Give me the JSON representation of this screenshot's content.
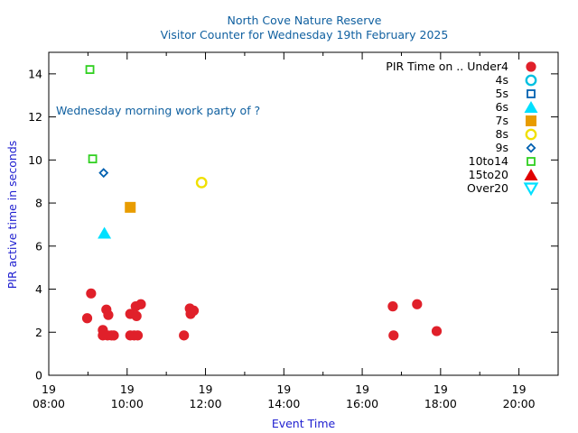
{
  "chart_data": {
    "type": "scatter",
    "title": "North Cove Nature Reserve",
    "subtitle": "Visitor Counter for Wednesday 19th February 2025",
    "xlabel": "Event Time",
    "ylabel": "PIR active time in seconds",
    "annotation": "Wednesday morning work party of ?",
    "legend_title": "PIR Time on ..",
    "legend_position": "top-right",
    "grid": false,
    "xlim": [
      8,
      21
    ],
    "ylim": [
      0,
      15
    ],
    "x_ticks": [
      {
        "value": 8,
        "day": "19",
        "time": "08:00"
      },
      {
        "value": 10,
        "day": "19",
        "time": "10:00"
      },
      {
        "value": 12,
        "day": "19",
        "time": "12:00"
      },
      {
        "value": 14,
        "day": "19",
        "time": "14:00"
      },
      {
        "value": 16,
        "day": "19",
        "time": "16:00"
      },
      {
        "value": 18,
        "day": "19",
        "time": "18:00"
      },
      {
        "value": 20,
        "day": "19",
        "time": "20:00"
      }
    ],
    "y_ticks": [
      "0",
      "2",
      "4",
      "6",
      "8",
      "10",
      "12",
      "14"
    ],
    "series": [
      {
        "name": "Under4",
        "color": "#e0202a",
        "marker": "circle-filled",
        "points": [
          {
            "x": 8.98,
            "y": 2.65
          },
          {
            "x": 9.08,
            "y": 3.8
          },
          {
            "x": 9.38,
            "y": 2.1
          },
          {
            "x": 9.38,
            "y": 1.85
          },
          {
            "x": 9.47,
            "y": 3.05
          },
          {
            "x": 9.52,
            "y": 2.8
          },
          {
            "x": 9.5,
            "y": 1.85
          },
          {
            "x": 9.6,
            "y": 1.85
          },
          {
            "x": 9.66,
            "y": 1.85
          },
          {
            "x": 10.08,
            "y": 2.85
          },
          {
            "x": 10.08,
            "y": 1.85
          },
          {
            "x": 10.18,
            "y": 1.85
          },
          {
            "x": 10.22,
            "y": 3.2
          },
          {
            "x": 10.24,
            "y": 2.75
          },
          {
            "x": 10.27,
            "y": 1.85
          },
          {
            "x": 10.35,
            "y": 3.3
          },
          {
            "x": 11.45,
            "y": 1.85
          },
          {
            "x": 11.6,
            "y": 3.1
          },
          {
            "x": 11.62,
            "y": 2.85
          },
          {
            "x": 11.7,
            "y": 3.0
          },
          {
            "x": 16.78,
            "y": 3.2
          },
          {
            "x": 16.8,
            "y": 1.85
          },
          {
            "x": 17.4,
            "y": 3.3
          },
          {
            "x": 17.9,
            "y": 2.05
          }
        ]
      },
      {
        "name": "4s",
        "color": "#00c0e0",
        "marker": "circle-open",
        "points": []
      },
      {
        "name": "5s",
        "color": "#0060b0",
        "marker": "square-open",
        "points": []
      },
      {
        "name": "6s",
        "color": "#00e0ff",
        "marker": "triangle-up-filled",
        "points": [
          {
            "x": 9.42,
            "y": 6.6
          }
        ]
      },
      {
        "name": "7s",
        "color": "#e89c00",
        "marker": "square-filled",
        "points": [
          {
            "x": 10.08,
            "y": 7.8
          }
        ]
      },
      {
        "name": "8s",
        "color": "#f0e000",
        "marker": "circle-open",
        "points": [
          {
            "x": 11.9,
            "y": 8.95
          }
        ]
      },
      {
        "name": "9s",
        "color": "#0060b0",
        "marker": "diamond-open",
        "points": [
          {
            "x": 9.4,
            "y": 9.4
          }
        ]
      },
      {
        "name": "10to14",
        "color": "#30d020",
        "marker": "square-open",
        "points": [
          {
            "x": 9.05,
            "y": 14.2
          },
          {
            "x": 9.12,
            "y": 10.05
          }
        ]
      },
      {
        "name": "15to20",
        "color": "#e00000",
        "marker": "triangle-up-filled",
        "points": []
      },
      {
        "name": "Over20",
        "color": "#00e0ff",
        "marker": "triangle-down-open",
        "points": []
      }
    ]
  }
}
